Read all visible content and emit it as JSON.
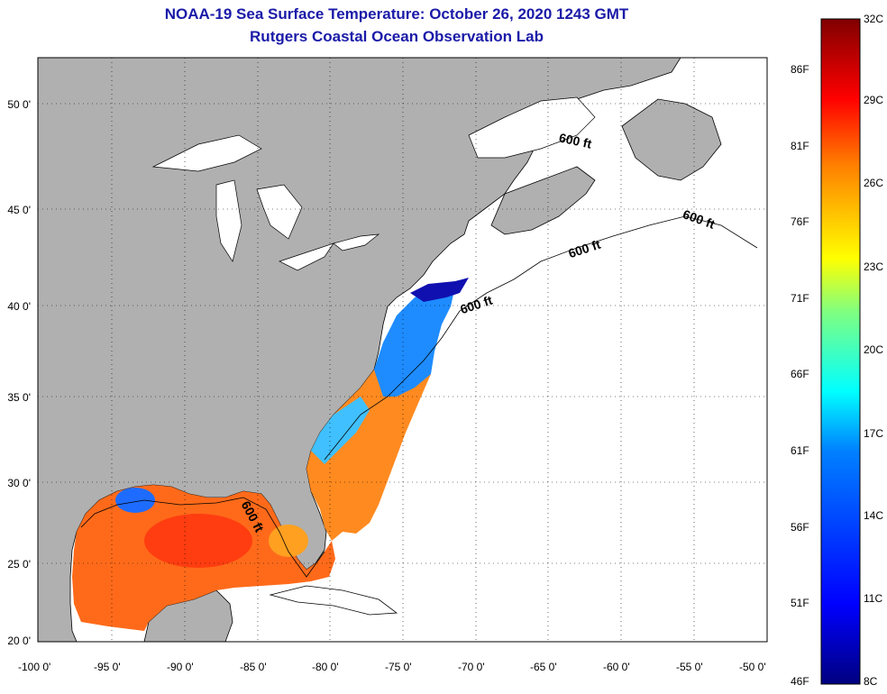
{
  "header": {
    "title": "NOAA-19 Sea Surface Temperature:  October 26, 2020 1243 GMT",
    "subtitle": "Rutgers Coastal Ocean Observation Lab"
  },
  "map": {
    "latitude_labels": [
      "50 0'",
      "45 0'",
      "40 0'",
      "35 0'",
      "30 0'",
      "25 0'",
      "20 0'"
    ],
    "longitude_labels": [
      "-100 0'",
      "-95 0'",
      "-90 0'",
      "-85 0'",
      "-80 0'",
      "-75 0'",
      "-70 0'",
      "-65 0'",
      "-60 0'",
      "-55 0'",
      "-50 0'"
    ],
    "contour_labels": [
      "600 ft",
      "600 ft",
      "600 ft",
      "600 ft",
      "600 ft"
    ],
    "land_color": "#b0b0b0",
    "ocean_color": "#ffffff",
    "gridlines": "dotted"
  },
  "colorbar": {
    "celsius_labels": [
      "32C",
      "29C",
      "26C",
      "23C",
      "20C",
      "17C",
      "14C",
      "11C",
      "8C"
    ],
    "fahrenheit_labels": [
      "86F",
      "81F",
      "76F",
      "71F",
      "66F",
      "61F",
      "56F",
      "51F",
      "46F"
    ],
    "colors": [
      "#800000",
      "#ff0000",
      "#ff8000",
      "#ffff00",
      "#80ff80",
      "#00ffff",
      "#0080ff",
      "#0000ff",
      "#000080"
    ]
  }
}
